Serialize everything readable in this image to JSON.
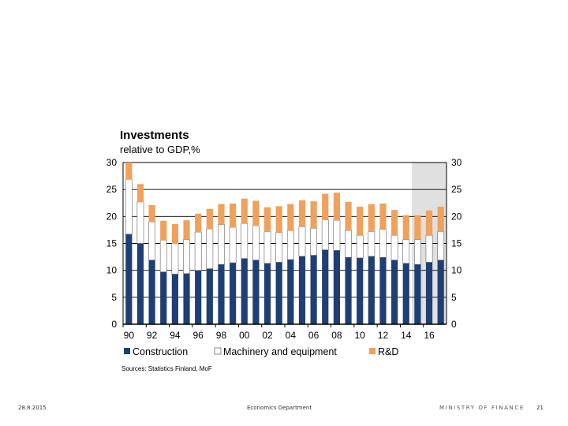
{
  "slide": {
    "footer_date": "28.8.2015",
    "footer_dept": "Economics Department",
    "footer_brand": "MINISTRY OF FINANCE",
    "page_number": "21"
  },
  "colors": {
    "construction": "#1f3f74",
    "machinery": "#ffffff",
    "rd": "#f0a15b",
    "forecast_shade": "#e0e0e0"
  },
  "chart_data": {
    "type": "bar",
    "stacked": true,
    "title": "Investments",
    "subtitle": "relative to GDP,%",
    "sources": "Sources: Statistics Finland, MoF",
    "ylim": [
      0,
      30
    ],
    "yticks": [
      "0",
      "5",
      "10",
      "15",
      "20",
      "25",
      "30"
    ],
    "grid": true,
    "forecast_from_year": 2015,
    "years": [
      1990,
      1991,
      1992,
      1993,
      1994,
      1995,
      1996,
      1997,
      1998,
      1999,
      2000,
      2001,
      2002,
      2003,
      2004,
      2005,
      2006,
      2007,
      2008,
      2009,
      2010,
      2011,
      2012,
      2013,
      2014,
      2015,
      2016,
      2017
    ],
    "xtick_labels": [
      "90",
      "92",
      "94",
      "96",
      "98",
      "00",
      "02",
      "04",
      "06",
      "08",
      "10",
      "12",
      "14",
      "16"
    ],
    "series": [
      {
        "name": "Construction",
        "values": [
          16.7,
          15.0,
          11.9,
          9.7,
          9.3,
          9.4,
          10.0,
          10.3,
          11.1,
          11.4,
          12.2,
          11.9,
          11.3,
          11.5,
          12.0,
          12.6,
          12.8,
          13.8,
          13.7,
          12.4,
          12.3,
          12.6,
          12.4,
          11.9,
          11.3,
          11.1,
          11.5,
          11.9
        ]
      },
      {
        "name": "Machinery and equipment",
        "values": [
          10.2,
          7.7,
          7.1,
          5.9,
          5.7,
          6.3,
          7.1,
          7.4,
          7.4,
          6.6,
          6.5,
          6.4,
          5.9,
          5.5,
          5.4,
          5.5,
          5.0,
          5.6,
          5.6,
          5.0,
          4.2,
          4.6,
          5.2,
          4.6,
          4.4,
          4.6,
          5.0,
          5.3
        ]
      },
      {
        "name": "R&D",
        "values": [
          3.1,
          3.3,
          3.1,
          3.6,
          3.6,
          3.6,
          3.4,
          3.7,
          3.8,
          4.4,
          4.6,
          4.6,
          4.5,
          4.9,
          4.9,
          4.9,
          5.0,
          4.8,
          5.1,
          5.3,
          5.3,
          5.1,
          4.8,
          4.7,
          4.5,
          4.5,
          4.6,
          4.6
        ]
      }
    ],
    "legend_position": "bottom-left"
  }
}
